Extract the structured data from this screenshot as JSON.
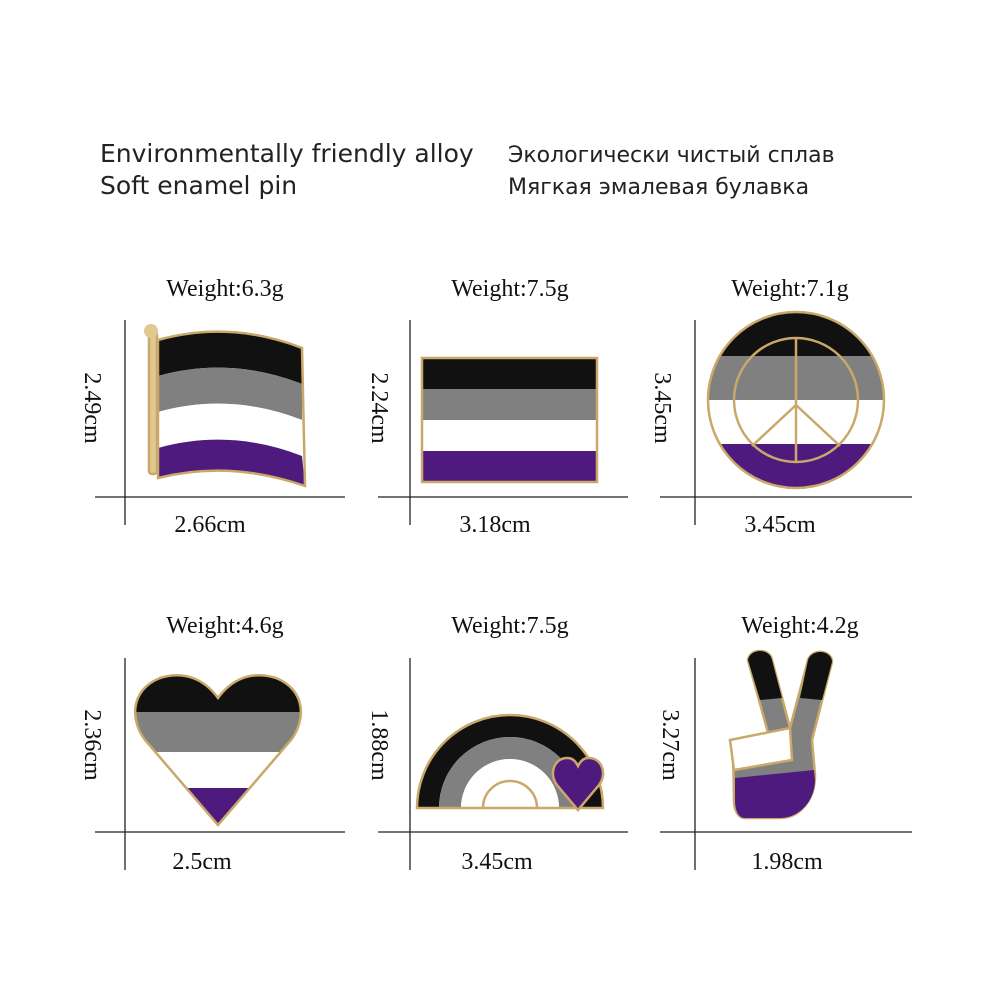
{
  "header": {
    "english": [
      "Environmentally friendly alloy",
      "Soft enamel pin"
    ],
    "russian": [
      "Экологически чистый сплав",
      "Мягкая эмалевая булавка"
    ]
  },
  "pins": [
    {
      "weight": "Weight:6.3g",
      "height": "2.49cm",
      "width": "2.66cm"
    },
    {
      "weight": "Weight:7.5g",
      "height": "2.24cm",
      "width": "3.18cm"
    },
    {
      "weight": "Weight:7.1g",
      "height": "3.45cm",
      "width": "3.45cm"
    },
    {
      "weight": "Weight:4.6g",
      "height": "2.36cm",
      "width": "2.5cm"
    },
    {
      "weight": "Weight:7.5g",
      "height": "1.88cm",
      "width": "3.45cm"
    },
    {
      "weight": "Weight:4.2g",
      "height": "3.27cm",
      "width": "1.98cm"
    }
  ]
}
